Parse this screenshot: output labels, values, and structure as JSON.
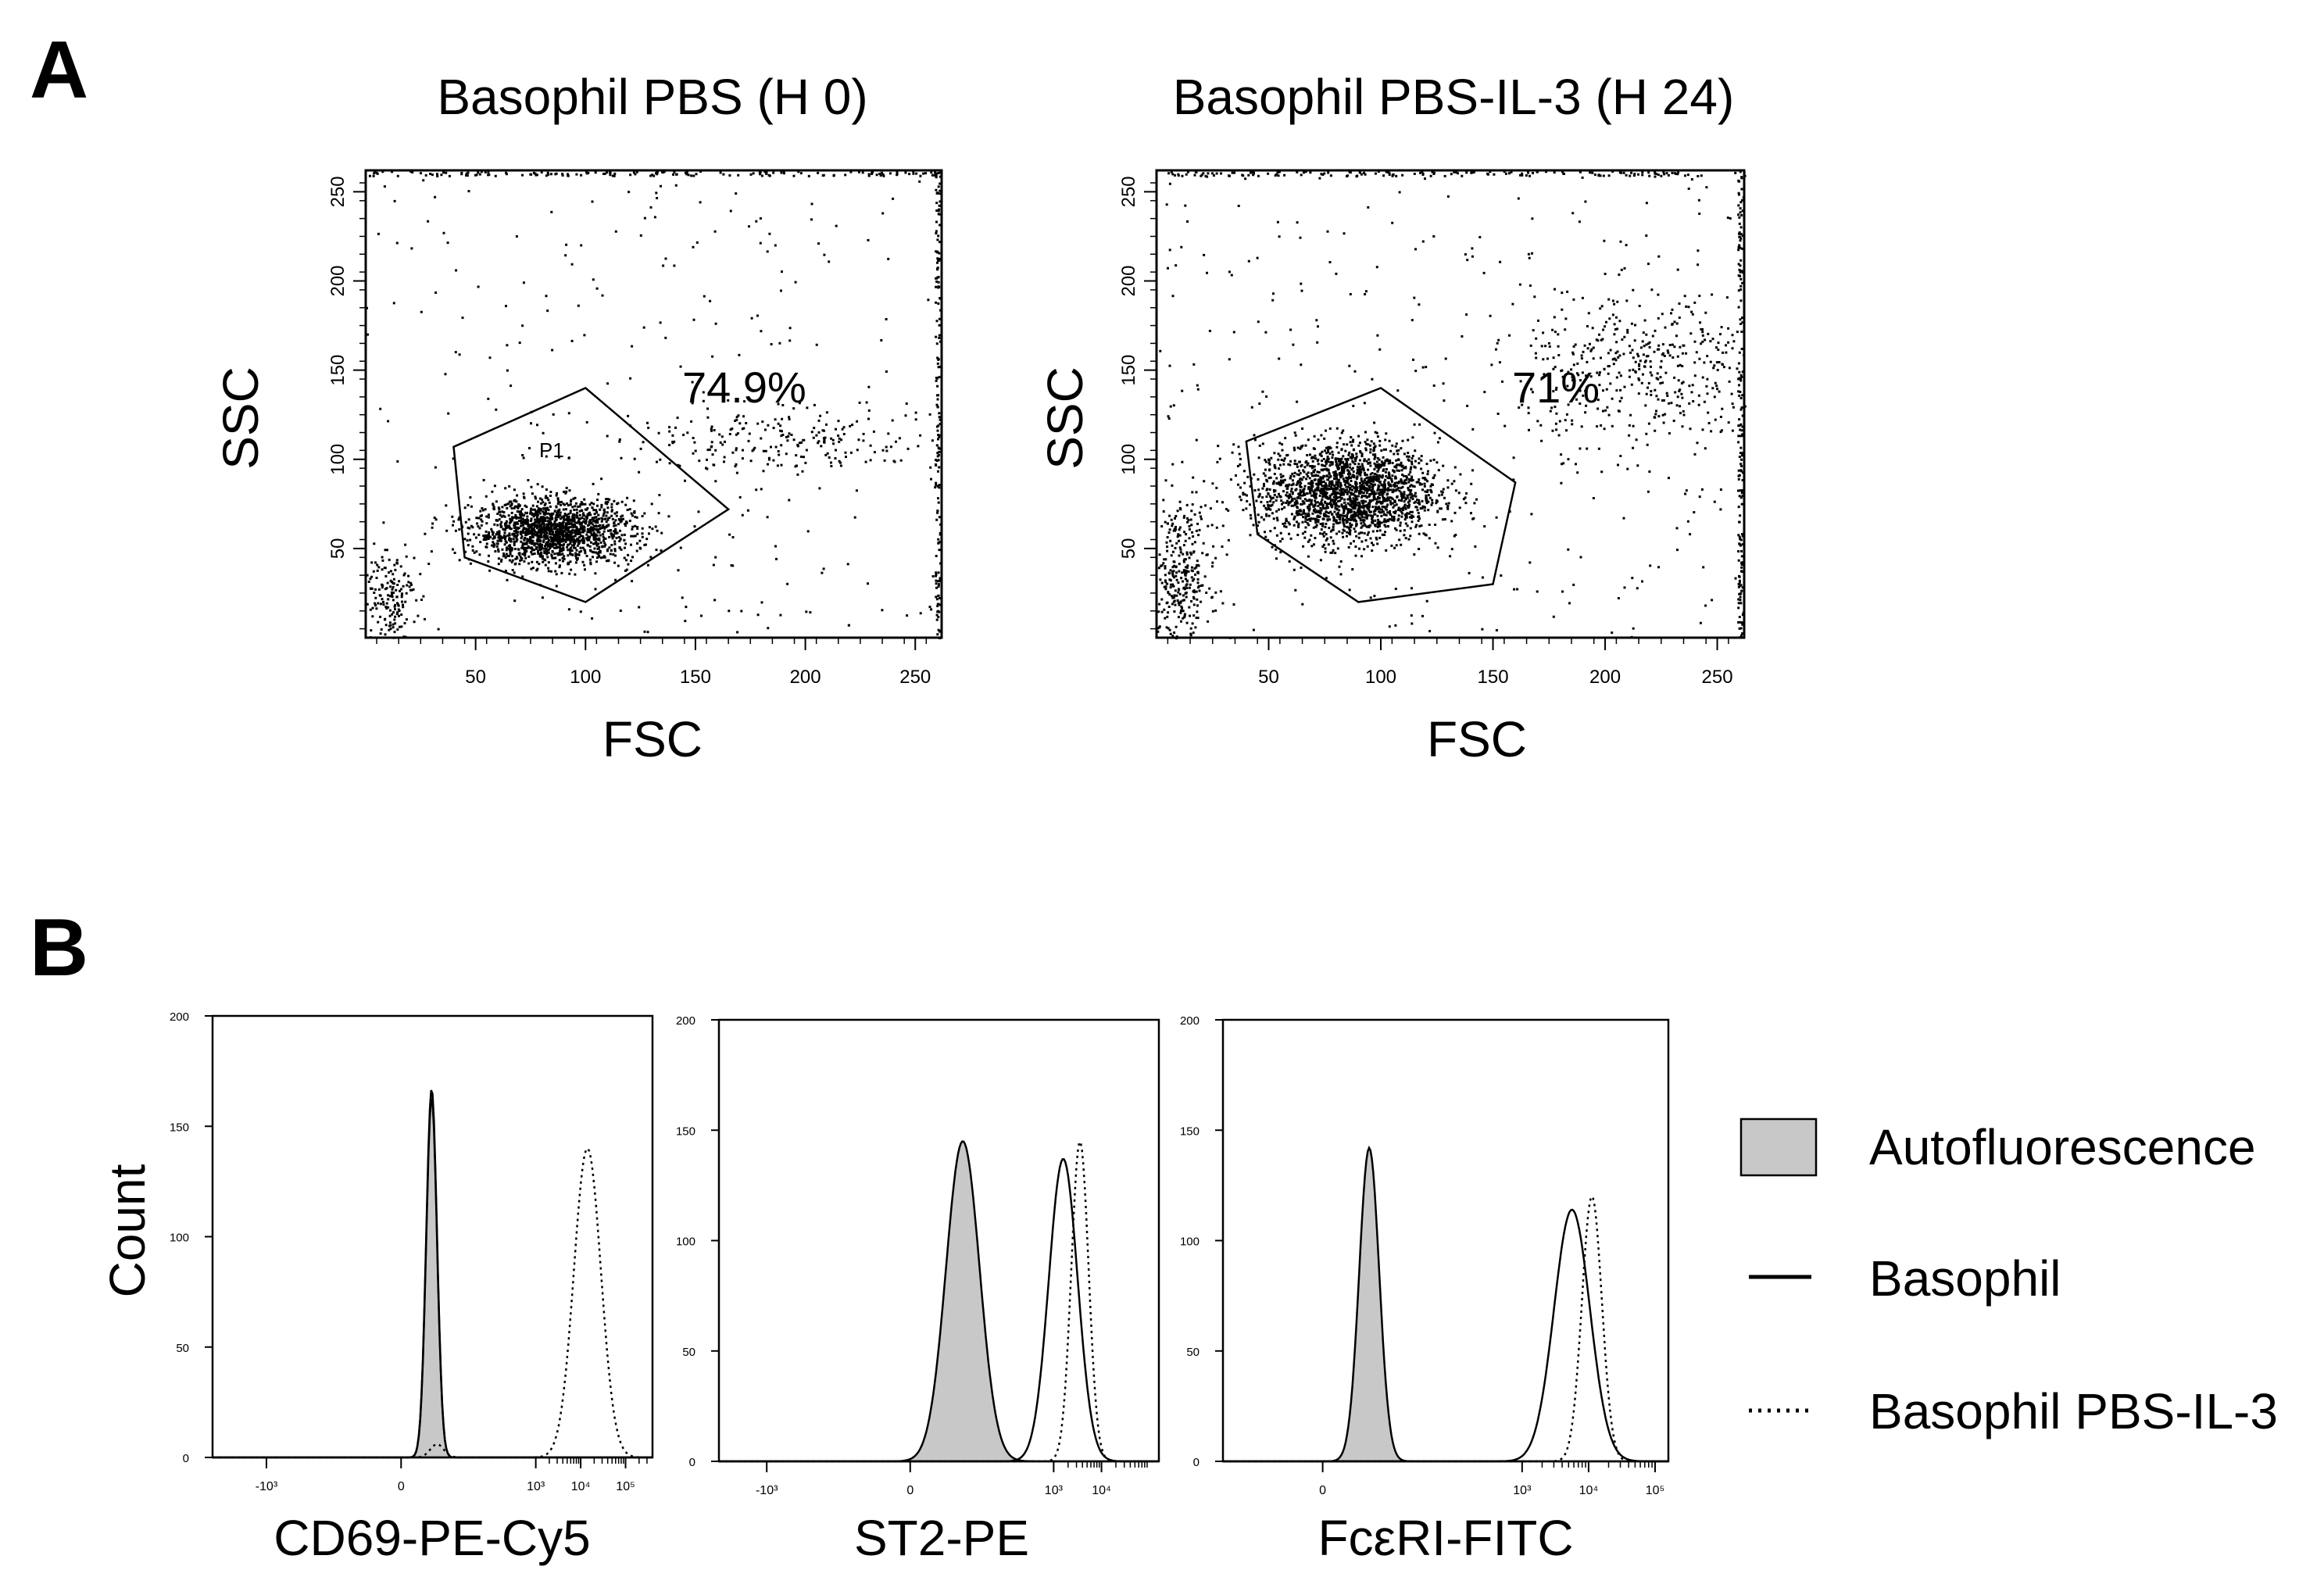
{
  "panels": {
    "a": {
      "letter": "A"
    },
    "b": {
      "letter": "B"
    }
  },
  "colors": {
    "ink": "#000000",
    "fill_gray": "#c8c8c8",
    "background": "#ffffff"
  },
  "chart_data": [
    {
      "type": "scatter",
      "panel": "A",
      "title": "Basophil PBS (H 0)",
      "xlabel": "FSC",
      "ylabel": "SSC",
      "xlim": [
        0,
        262
      ],
      "ylim": [
        0,
        262
      ],
      "x_ticks": [
        50,
        100,
        150,
        200,
        250
      ],
      "x_tick_labels": [
        "50",
        "100",
        "150",
        "200",
        "250"
      ],
      "y_ticks": [
        50,
        100,
        150,
        200,
        250
      ],
      "y_tick_labels": [
        "50",
        "100",
        "150",
        "200",
        "250"
      ],
      "gate": {
        "name": "P1",
        "percent_label": "74.9%",
        "polygon": [
          [
            40,
            107
          ],
          [
            100,
            140
          ],
          [
            165,
            72
          ],
          [
            100,
            20
          ],
          [
            45,
            45
          ]
        ]
      },
      "populations": [
        {
          "role": "main",
          "cx": 85,
          "cy": 60,
          "sx": 18,
          "sy": 9,
          "n": 1600
        },
        {
          "role": "large",
          "cx": 190,
          "cy": 110,
          "sx": 38,
          "sy": 9,
          "n": 220
        },
        {
          "role": "debris",
          "cx": 10,
          "cy": 25,
          "sx": 6,
          "sy": 12,
          "n": 160
        },
        {
          "role": "background",
          "n": 260
        }
      ]
    },
    {
      "type": "scatter",
      "panel": "A",
      "title": "Basophil PBS-IL-3 (H 24)",
      "xlabel": "FSC",
      "ylabel": "SSC",
      "xlim": [
        0,
        262
      ],
      "ylim": [
        0,
        262
      ],
      "x_ticks": [
        50,
        100,
        150,
        200,
        250
      ],
      "x_tick_labels": [
        "50",
        "100",
        "150",
        "200",
        "250"
      ],
      "y_ticks": [
        50,
        100,
        150,
        200,
        250
      ],
      "y_tick_labels": [
        "50",
        "100",
        "150",
        "200",
        "250"
      ],
      "gate": {
        "name": "",
        "percent_label": "71%",
        "polygon": [
          [
            40,
            110
          ],
          [
            100,
            140
          ],
          [
            160,
            87
          ],
          [
            150,
            30
          ],
          [
            90,
            20
          ],
          [
            45,
            58
          ]
        ]
      },
      "populations": [
        {
          "role": "main",
          "cx": 85,
          "cy": 82,
          "sx": 20,
          "sy": 14,
          "n": 2000
        },
        {
          "role": "large",
          "cx": 218,
          "cy": 150,
          "sx": 28,
          "sy": 22,
          "n": 420
        },
        {
          "role": "debris",
          "cx": 10,
          "cy": 35,
          "sx": 7,
          "sy": 20,
          "n": 320
        },
        {
          "role": "background",
          "n": 320
        }
      ]
    },
    {
      "type": "area",
      "panel": "B",
      "xlabel": "CD69-PE-Cy5",
      "ylabel": "Count",
      "ylim": [
        0,
        200
      ],
      "y_ticks": [
        0,
        50,
        100,
        150,
        200
      ],
      "y_tick_labels": [
        "0",
        "50",
        "100",
        "150",
        "200"
      ],
      "x_ticks": [
        -3,
        0,
        3,
        4,
        5
      ],
      "x_tick_labels": [
        "-10³",
        "0",
        "10³",
        "10⁴",
        "10⁵"
      ],
      "series": [
        {
          "name": "Autofluorescence",
          "style": "filled",
          "peaks": [
            {
              "pos": 0.68,
              "height": 167,
              "width": 0.12
            }
          ]
        },
        {
          "name": "Basophil",
          "style": "solid",
          "peaks": [
            {
              "pos": 0.68,
              "height": 163,
              "width": 0.12
            }
          ]
        },
        {
          "name": "Basophil PBS-IL-3",
          "style": "dotted",
          "peaks": [
            {
              "pos": 4.15,
              "height": 140,
              "width": 0.3
            },
            {
              "pos": 0.8,
              "height": 6,
              "width": 0.15
            }
          ]
        }
      ]
    },
    {
      "type": "area",
      "panel": "B",
      "xlabel": "ST2-PE",
      "ylabel": "",
      "ylim": [
        0,
        200
      ],
      "y_ticks": [
        0,
        50,
        100,
        150,
        200
      ],
      "y_tick_labels": [
        "0",
        "50",
        "100",
        "150",
        "200"
      ],
      "x_ticks": [
        -3,
        0,
        3,
        4
      ],
      "x_tick_labels": [
        "-10³",
        "0",
        "10³",
        "10⁴"
      ],
      "series": [
        {
          "name": "Autofluorescence",
          "style": "filled",
          "peaks": [
            {
              "pos": 1.1,
              "height": 145,
              "width": 0.35
            }
          ]
        },
        {
          "name": "Basophil",
          "style": "solid",
          "peaks": [
            {
              "pos": 3.2,
              "height": 137,
              "width": 0.3
            }
          ]
        },
        {
          "name": "Basophil PBS-IL-3",
          "style": "dotted",
          "peaks": [
            {
              "pos": 3.55,
              "height": 145,
              "width": 0.18
            }
          ]
        }
      ]
    },
    {
      "type": "area",
      "panel": "B",
      "xlabel": "FcεRI-FITC",
      "ylabel": "",
      "ylim": [
        0,
        200
      ],
      "y_ticks": [
        0,
        50,
        100,
        150,
        200
      ],
      "y_tick_labels": [
        "0",
        "50",
        "100",
        "150",
        "200"
      ],
      "x_ticks": [
        0,
        3,
        4,
        5
      ],
      "x_tick_labels": [
        "0",
        "10³",
        "10⁴",
        "10⁵"
      ],
      "series": [
        {
          "name": "Autofluorescence",
          "style": "filled",
          "peaks": [
            {
              "pos": 0.7,
              "height": 142,
              "width": 0.15
            }
          ]
        },
        {
          "name": "Basophil",
          "style": "solid",
          "peaks": [
            {
              "pos": 3.75,
              "height": 114,
              "width": 0.27
            }
          ]
        },
        {
          "name": "Basophil PBS-IL-3",
          "style": "dotted",
          "peaks": [
            {
              "pos": 4.05,
              "height": 120,
              "width": 0.15
            }
          ]
        }
      ]
    }
  ],
  "legend": {
    "placement": "right",
    "entries": [
      {
        "label": "Autofluorescence",
        "style": "filled"
      },
      {
        "label": "Basophil",
        "style": "solid"
      },
      {
        "label": "Basophil PBS-IL-3",
        "style": "dotted"
      }
    ]
  }
}
